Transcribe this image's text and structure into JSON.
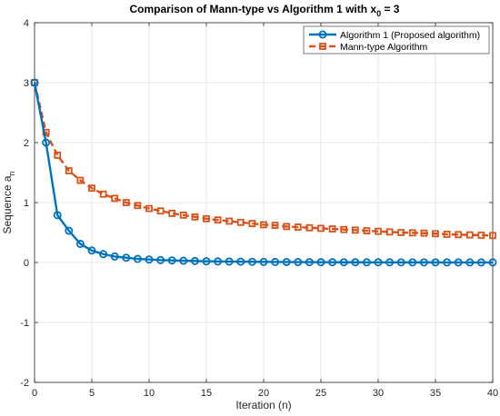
{
  "chart_data": {
    "type": "line",
    "title": {
      "main": "Comparison of Mann-type vs Algorithm 1 with x",
      "sub": "0",
      "tail": " = 3"
    },
    "xlabel": "Iteration (n)",
    "ylabel": {
      "main": "Sequence a",
      "sub": "n"
    },
    "xlim": [
      0,
      40
    ],
    "ylim": [
      -2,
      4
    ],
    "xticks": [
      "0",
      "5",
      "10",
      "15",
      "20",
      "25",
      "30",
      "35",
      "40"
    ],
    "yticks": [
      "-2",
      "-1",
      "0",
      "1",
      "2",
      "3",
      "4"
    ],
    "grid": true,
    "legend_position": "top-right",
    "x": [
      0,
      1,
      2,
      3,
      4,
      5,
      6,
      7,
      8,
      9,
      10,
      11,
      12,
      13,
      14,
      15,
      16,
      17,
      18,
      19,
      20,
      21,
      22,
      23,
      24,
      25,
      26,
      27,
      28,
      29,
      30,
      31,
      32,
      33,
      34,
      35,
      36,
      37,
      38,
      39,
      40
    ],
    "series": [
      {
        "name": "Algorithm 1 (Proposed algorithm)",
        "color": "#0072BD",
        "marker": "circle",
        "linestyle": "solid",
        "values": [
          3.0,
          2.0,
          0.79,
          0.53,
          0.31,
          0.2,
          0.14,
          0.1,
          0.08,
          0.06,
          0.05,
          0.04,
          0.035,
          0.03,
          0.025,
          0.02,
          0.018,
          0.016,
          0.014,
          0.012,
          0.01,
          0.009,
          0.008,
          0.007,
          0.006,
          0.005,
          0.005,
          0.004,
          0.004,
          0.003,
          0.003,
          0.003,
          0.002,
          0.002,
          0.002,
          0.002,
          0.001,
          0.001,
          0.001,
          0.001,
          0.001
        ]
      },
      {
        "name": "Mann-type Algorithm",
        "color": "#D95319",
        "marker": "square",
        "linestyle": "dashed",
        "values": [
          3.0,
          2.17,
          1.79,
          1.53,
          1.37,
          1.24,
          1.14,
          1.07,
          1.0,
          0.95,
          0.9,
          0.86,
          0.82,
          0.79,
          0.76,
          0.73,
          0.71,
          0.69,
          0.67,
          0.65,
          0.63,
          0.62,
          0.6,
          0.59,
          0.58,
          0.57,
          0.56,
          0.55,
          0.54,
          0.53,
          0.52,
          0.51,
          0.5,
          0.495,
          0.49,
          0.48,
          0.47,
          0.465,
          0.46,
          0.455,
          0.45
        ]
      }
    ]
  }
}
